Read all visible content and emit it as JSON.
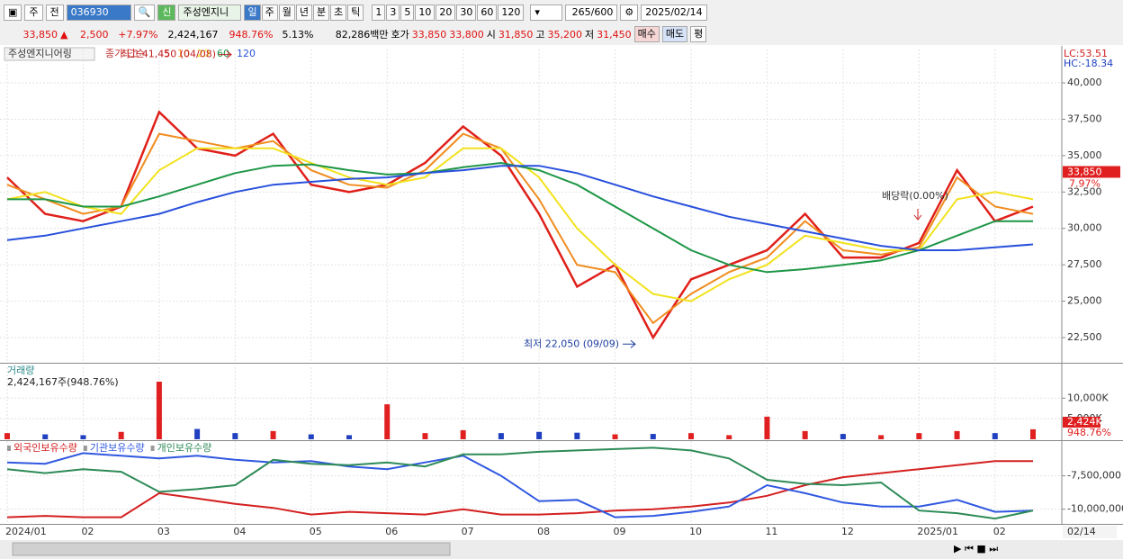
{
  "toolbar": {
    "market": "주",
    "period_select": "전",
    "code": "036930",
    "new_badge": "신",
    "name": "주성엔지니",
    "intervals": [
      "일",
      "주",
      "월",
      "년",
      "분",
      "초",
      "틱"
    ],
    "units": [
      "1",
      "3",
      "5",
      "10",
      "20",
      "30",
      "60",
      "120"
    ],
    "count": "265",
    "max_count": "/600",
    "date": "2025/02/14"
  },
  "quote": {
    "price": "33,850",
    "arrow": "▲",
    "change": "2,500",
    "change_pct": "+7.97%",
    "volume": "2,424,167",
    "volume_ratio": "948.76%",
    "turnover": "5.13%",
    "amount": "82,286백만",
    "ask_label": "호가",
    "ask": "33,850",
    "bid": "33,800",
    "open_label": "시",
    "open": "31,850",
    "high_label": "고",
    "high": "35,200",
    "low_label": "저",
    "low": "31,450",
    "buy": "매수",
    "sell": "매도",
    "avg": "평"
  },
  "chart_data": [
    {
      "type": "line",
      "title": "주성엔지니어링",
      "legend_title": "종가 단순",
      "lc_label": "LC:53.51",
      "hc_label": "HC:-18.34",
      "categories": [
        "2024/01",
        null,
        "02",
        null,
        "03",
        null,
        "04",
        null,
        "05",
        null,
        "06",
        null,
        "07",
        null,
        "08",
        null,
        "09",
        null,
        "10",
        null,
        "11",
        null,
        "12",
        null,
        "2025/01",
        null,
        "02",
        null
      ],
      "series": [
        {
          "name": "5",
          "color": "#e0201a",
          "values": [
            33500,
            31000,
            30500,
            31500,
            38000,
            35500,
            35000,
            36500,
            33000,
            32500,
            33000,
            34500,
            37000,
            35000,
            31000,
            26000,
            27500,
            22500,
            26500,
            27500,
            28500,
            31000,
            28000,
            28000,
            29000,
            34000,
            30500,
            31500
          ]
        },
        {
          "name": "10",
          "color": "#f08c1e",
          "values": [
            33000,
            32000,
            31000,
            31500,
            36500,
            36000,
            35500,
            36000,
            34000,
            33000,
            32800,
            34000,
            36500,
            35500,
            32000,
            27500,
            27000,
            23500,
            25500,
            27000,
            28000,
            30500,
            28500,
            28200,
            28700,
            33500,
            31500,
            31000
          ]
        },
        {
          "name": "20",
          "color": "#f2e21e",
          "values": [
            32000,
            32500,
            31500,
            31000,
            34000,
            35500,
            35500,
            35500,
            34500,
            33500,
            33000,
            33500,
            35500,
            35500,
            33500,
            30000,
            27500,
            25500,
            25000,
            26500,
            27500,
            29500,
            29000,
            28500,
            28500,
            32000,
            32500,
            32000
          ]
        },
        {
          "name": "60",
          "color": "#1e9646",
          "values": [
            32000,
            32000,
            31500,
            31500,
            32200,
            33000,
            33800,
            34300,
            34400,
            34000,
            33700,
            33800,
            34200,
            34500,
            34000,
            33000,
            31500,
            30000,
            28500,
            27500,
            27000,
            27200,
            27500,
            27800,
            28500,
            29500,
            30500,
            30500
          ]
        },
        {
          "name": "120",
          "color": "#2850dc",
          "values": [
            29200,
            29500,
            30000,
            30500,
            31000,
            31800,
            32500,
            33000,
            33200,
            33400,
            33500,
            33800,
            34000,
            34300,
            34300,
            33800,
            33000,
            32200,
            31500,
            30800,
            30300,
            29800,
            29300,
            28800,
            28500,
            28500,
            28700,
            28900
          ]
        }
      ],
      "ylim": [
        20770,
        42290
      ],
      "yticks": [
        {
          "value": 22500,
          "label": "22,500"
        },
        {
          "value": 25000,
          "label": "25,000"
        },
        {
          "value": 27500,
          "label": "27,500"
        },
        {
          "value": 30000,
          "label": "30,000"
        },
        {
          "value": 32500,
          "label": "32,500"
        },
        {
          "value": 35000,
          "label": "35,000"
        },
        {
          "value": 37500,
          "label": "37,500"
        },
        {
          "value": 40000,
          "label": "40,000"
        }
      ],
      "grid": true,
      "last_price": {
        "value": 33850,
        "label": "33,850"
      },
      "last_change_label": "7.97%",
      "high": {
        "value": 41450,
        "label": "최고 41,450 (04/08)"
      },
      "low": {
        "value": 22050,
        "label": "최저 22,050 (09/09)"
      },
      "event_label": "배당락(0.00%)"
    },
    {
      "type": "bar",
      "title": "거래량",
      "subtitle": "2,424,167주(948.76%)",
      "color": "#2040c0",
      "categories": [
        "2024/01",
        null,
        "02",
        null,
        "03",
        null,
        "04",
        null,
        "05",
        null,
        "06",
        null,
        "07",
        null,
        "08",
        null,
        "09",
        null,
        "10",
        null,
        "11",
        null,
        "12",
        null,
        "2025/01",
        null,
        "02",
        null
      ],
      "values": [
        1500,
        1200,
        1000,
        1800,
        14000,
        2500,
        1500,
        2000,
        1200,
        1000,
        8500,
        1500,
        2200,
        1500,
        1800,
        1600,
        1200,
        1300,
        1500,
        1000,
        5500,
        2000,
        1300,
        1000,
        1500,
        2000,
        1500,
        2424
      ],
      "ylim": [
        0,
        17500
      ],
      "yticks": [
        {
          "value": 5000,
          "label": "5,000K"
        },
        {
          "value": 10000,
          "label": "10,000K"
        }
      ],
      "last_label": "2,424K",
      "ratio_label": "948.76%"
    },
    {
      "type": "line",
      "categories": [
        "2024/01",
        null,
        "02",
        null,
        "03",
        null,
        "04",
        null,
        "05",
        null,
        "06",
        null,
        "07",
        null,
        "08",
        null,
        "09",
        null,
        "10",
        null,
        "11",
        null,
        "12",
        null,
        "2025/01",
        null,
        "02",
        null
      ],
      "series": [
        {
          "name": "외국인보유수량",
          "color": "#d42020",
          "values": [
            -10600000,
            -10500000,
            -10600000,
            -10600000,
            -8800000,
            -9200000,
            -9600000,
            -9900000,
            -10400000,
            -10200000,
            -10300000,
            -10400000,
            -10000000,
            -10400000,
            -10400000,
            -10300000,
            -10100000,
            -10000000,
            -9800000,
            -9500000,
            -9000000,
            -8200000,
            -7600000,
            -7300000,
            -7000000,
            -6700000,
            -6400000,
            -6400000
          ]
        },
        {
          "name": "기관보유수량",
          "color": "#3058e0",
          "values": [
            -6500000,
            -6600000,
            -5800000,
            -6000000,
            -6200000,
            -6000000,
            -6300000,
            -6500000,
            -6400000,
            -6800000,
            -7000000,
            -6500000,
            -6000000,
            -7500000,
            -9400000,
            -9300000,
            -10600000,
            -10500000,
            -10200000,
            -9800000,
            -8200000,
            -8800000,
            -9500000,
            -9800000,
            -9800000,
            -9300000,
            -10200000,
            -10100000
          ]
        },
        {
          "name": "개인보유수량",
          "color": "#2e8b57",
          "values": [
            -7000000,
            -7300000,
            -7000000,
            -7200000,
            -8700000,
            -8500000,
            -8200000,
            -6300000,
            -6600000,
            -6700000,
            -6500000,
            -6800000,
            -5900000,
            -5900000,
            -5700000,
            -5600000,
            -5500000,
            -5400000,
            -5600000,
            -6200000,
            -7800000,
            -8100000,
            -8200000,
            -8000000,
            -10100000,
            -10300000,
            -10700000,
            -10100000
          ]
        }
      ],
      "ylim": [
        -11100000,
        -4900000
      ],
      "yticks": [
        {
          "value": -10000000,
          "label": "-10,000,000"
        },
        {
          "value": -7500000,
          "label": "-7,500,000"
        }
      ],
      "x_end_label": "02/14"
    }
  ]
}
